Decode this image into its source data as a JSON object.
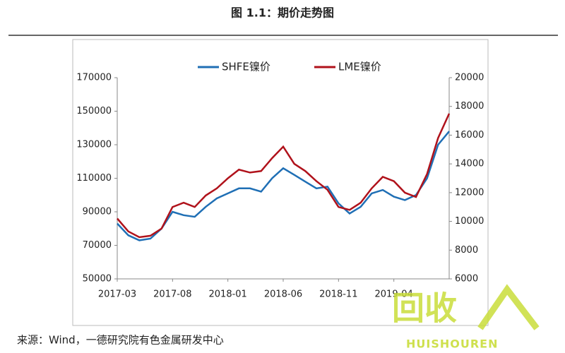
{
  "chart_data": {
    "type": "line",
    "title": "图 1.1：期价走势图",
    "source": "来源：Wind，一德研究院有色金属研发中心",
    "watermark": {
      "text": "回收",
      "subtext": "HUISHOUREN"
    },
    "x": [
      "2017-03",
      "2017-04",
      "2017-05",
      "2017-06",
      "2017-07",
      "2017-08",
      "2017-09",
      "2017-10",
      "2017-11",
      "2017-12",
      "2018-01",
      "2018-02",
      "2018-03",
      "2018-04",
      "2018-05",
      "2018-06",
      "2018-07",
      "2018-08",
      "2018-09",
      "2018-10",
      "2018-11",
      "2018-12",
      "2019-01",
      "2019-02",
      "2019-03",
      "2019-04",
      "2019-05",
      "2019-06",
      "2019-07",
      "2019-08",
      "2019-09"
    ],
    "xticks": [
      "2017-03",
      "2017-08",
      "2018-01",
      "2018-06",
      "2018-11",
      "2019-04"
    ],
    "ylim": [
      50000,
      170000
    ],
    "yticks": [
      50000,
      70000,
      90000,
      110000,
      130000,
      150000,
      170000
    ],
    "y2lim": [
      6000,
      20000
    ],
    "y2ticks": [
      6000,
      8000,
      10000,
      12000,
      14000,
      16000,
      18000,
      20000
    ],
    "legend": "top",
    "series": [
      {
        "name": "SHFE镍价",
        "color": "#1f6fb5",
        "values": [
          83000,
          76000,
          73000,
          74000,
          80000,
          90000,
          88000,
          87000,
          93000,
          98000,
          101000,
          104000,
          104000,
          102000,
          110000,
          116000,
          112000,
          108000,
          104000,
          105000,
          95000,
          89000,
          93000,
          101000,
          103000,
          99000,
          97000,
          100000,
          110000,
          130000,
          138000
        ]
      },
      {
        "name": "LME镍价",
        "color": "#b0121b",
        "axis": "y2",
        "values": [
          10200,
          9300,
          8900,
          9000,
          9500,
          11000,
          11300,
          11000,
          11800,
          12300,
          13000,
          13600,
          13400,
          13500,
          14400,
          15200,
          14000,
          13500,
          12800,
          12200,
          11000,
          10800,
          11300,
          12300,
          13100,
          12800,
          12000,
          11700,
          13300,
          15800,
          17500
        ]
      }
    ]
  }
}
